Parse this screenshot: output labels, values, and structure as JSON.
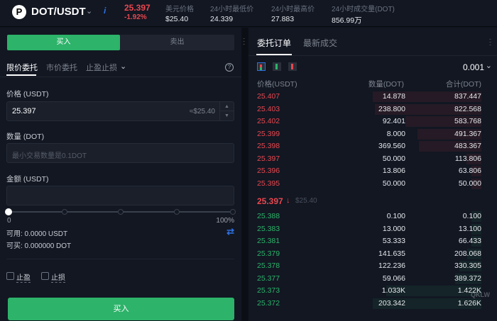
{
  "header": {
    "logo": "P",
    "pair": "DOT/USDT",
    "last_price": "25.397",
    "change": "-1.92%",
    "stats": [
      {
        "label": "美元价格",
        "value": "$25.40"
      },
      {
        "label": "24小时最低价",
        "value": "24.339"
      },
      {
        "label": "24小时最高价",
        "value": "27.883"
      },
      {
        "label": "24小时成交量(DOT)",
        "value": "856.99万"
      }
    ]
  },
  "order_form": {
    "buy_tab": "买入",
    "sell_tab": "卖出",
    "order_types": [
      "限价委托",
      "市价委托",
      "止盈止损"
    ],
    "price_label": "价格 (USDT)",
    "price_value": "25.397",
    "price_usd": "≈$25.40",
    "qty_label": "数量 (DOT)",
    "qty_placeholder": "最小交易数量是0.1DOT",
    "amount_label": "金额 (USDT)",
    "amount_value": "",
    "slider_min": "0",
    "slider_max": "100%",
    "slider_value": 0,
    "available": "可用: 0.0000 USDT",
    "buyable": "可买: 0.000000 DOT",
    "take_profit": "止盈",
    "stop_loss": "止损",
    "submit": "买入"
  },
  "orderbook": {
    "tabs": [
      "委托订单",
      "最新成交"
    ],
    "precision": "0.001",
    "columns": [
      "价格(USDT)",
      "数量(DOT)",
      "合计(DOT)"
    ],
    "asks": [
      [
        "25.407",
        "14.878",
        "837.447"
      ],
      [
        "25.403",
        "238.800",
        "822.568"
      ],
      [
        "25.402",
        "92.401",
        "583.768"
      ],
      [
        "25.399",
        "8.000",
        "491.367"
      ],
      [
        "25.398",
        "369.560",
        "483.367"
      ],
      [
        "25.397",
        "50.000",
        "113.806"
      ],
      [
        "25.396",
        "13.806",
        "63.806"
      ],
      [
        "25.395",
        "50.000",
        "50.000"
      ]
    ],
    "mid_price": "25.397",
    "mid_usd": "$25.40",
    "bids": [
      [
        "25.388",
        "0.100",
        "0.100"
      ],
      [
        "25.383",
        "13.000",
        "13.100"
      ],
      [
        "25.381",
        "53.333",
        "66.433"
      ],
      [
        "25.379",
        "141.635",
        "208.068"
      ],
      [
        "25.378",
        "122.236",
        "330.305"
      ],
      [
        "25.377",
        "59.066",
        "389.372"
      ],
      [
        "25.373",
        "1.033K",
        "1.422K"
      ],
      [
        "25.372",
        "203.342",
        "1.626K"
      ]
    ],
    "colors": {
      "ask": "#e8474f",
      "bid": "#2db36a"
    }
  },
  "watermark": "区块链网"
}
